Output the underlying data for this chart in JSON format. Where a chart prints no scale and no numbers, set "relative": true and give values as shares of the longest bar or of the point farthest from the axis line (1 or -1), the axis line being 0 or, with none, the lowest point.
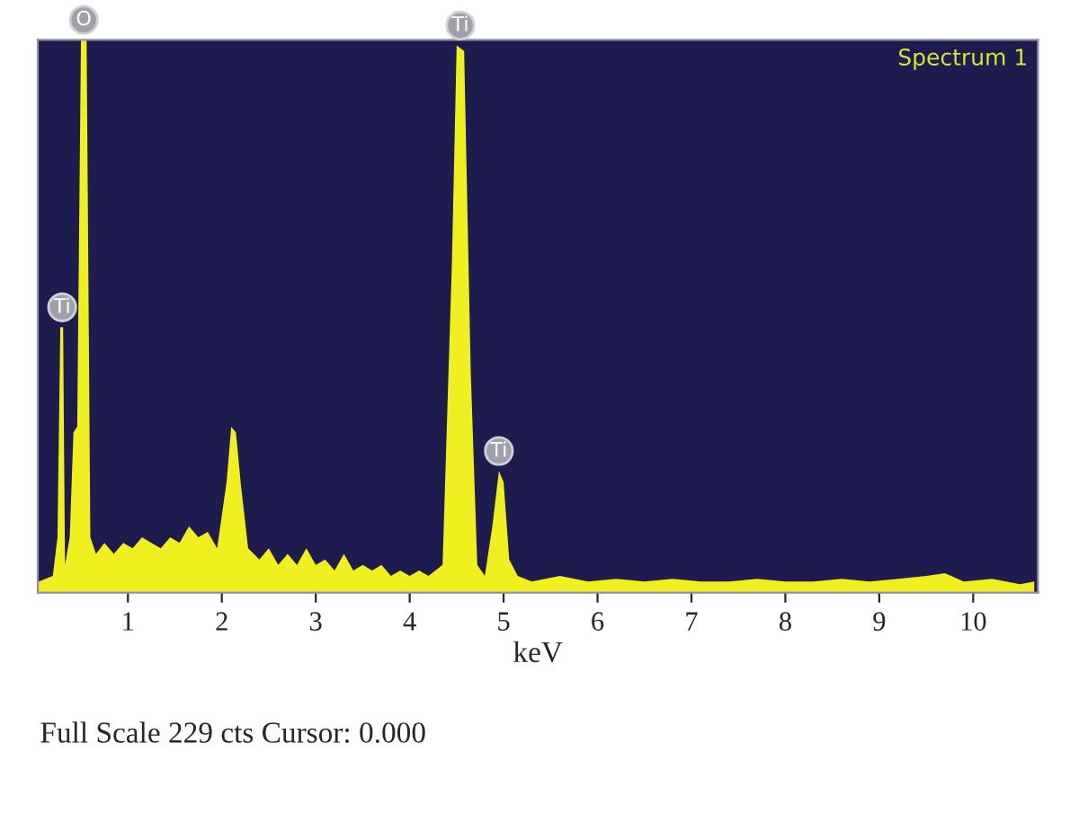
{
  "chart_data": {
    "type": "area",
    "relative": true,
    "xlabel": "keV",
    "xlim": [
      0.04,
      10.69
    ],
    "xticks": [
      1,
      2,
      3,
      4,
      5,
      6,
      7,
      8,
      9,
      10
    ],
    "grid": false,
    "series": [
      {
        "color": "#f0f020",
        "x": [
          0.05,
          0.2,
          0.25,
          0.28,
          0.31,
          0.33,
          0.38,
          0.42,
          0.46,
          0.5,
          0.56,
          0.6,
          0.66,
          0.75,
          0.85,
          0.95,
          1.05,
          1.15,
          1.25,
          1.35,
          1.45,
          1.55,
          1.65,
          1.75,
          1.85,
          1.95,
          2.05,
          2.1,
          2.15,
          2.2,
          2.28,
          2.4,
          2.5,
          2.6,
          2.7,
          2.8,
          2.9,
          3.0,
          3.1,
          3.2,
          3.3,
          3.4,
          3.5,
          3.6,
          3.7,
          3.8,
          3.9,
          4.0,
          4.1,
          4.2,
          4.35,
          4.45,
          4.5,
          4.58,
          4.65,
          4.72,
          4.8,
          4.88,
          4.95,
          5.0,
          5.06,
          5.15,
          5.3,
          5.6,
          5.9,
          6.2,
          6.5,
          6.8,
          7.1,
          7.4,
          7.7,
          8.0,
          8.3,
          8.6,
          8.9,
          9.2,
          9.5,
          9.7,
          9.9,
          10.2,
          10.5,
          10.65
        ],
        "values": [
          0.02,
          0.03,
          0.1,
          0.48,
          0.48,
          0.05,
          0.1,
          0.29,
          0.3,
          1,
          1,
          0.1,
          0.07,
          0.09,
          0.07,
          0.09,
          0.08,
          0.1,
          0.09,
          0.08,
          0.1,
          0.09,
          0.12,
          0.1,
          0.11,
          0.08,
          0.2,
          0.3,
          0.29,
          0.2,
          0.08,
          0.06,
          0.08,
          0.05,
          0.07,
          0.05,
          0.08,
          0.05,
          0.06,
          0.04,
          0.07,
          0.04,
          0.05,
          0.04,
          0.05,
          0.03,
          0.04,
          0.03,
          0.04,
          0.03,
          0.05,
          0.6,
          0.99,
          0.98,
          0.4,
          0.05,
          0.03,
          0.12,
          0.22,
          0.2,
          0.06,
          0.03,
          0.02,
          0.03,
          0.02,
          0.025,
          0.02,
          0.025,
          0.02,
          0.02,
          0.025,
          0.02,
          0.02,
          0.025,
          0.02,
          0.025,
          0.03,
          0.035,
          0.02,
          0.025,
          0.015,
          0.02
        ]
      }
    ],
    "annotations": [
      "Spectrum 1",
      "Full Scale 229 cts Cursor: 0.000",
      {
        "text": "O",
        "x": 0.53,
        "y": 1
      },
      {
        "text": "Ti",
        "x": 0.3,
        "y": 0.48
      },
      {
        "text": "Ti",
        "x": 4.54,
        "y": 0.99
      },
      {
        "text": "Ti",
        "x": 4.95,
        "y": 0.22
      }
    ]
  }
}
